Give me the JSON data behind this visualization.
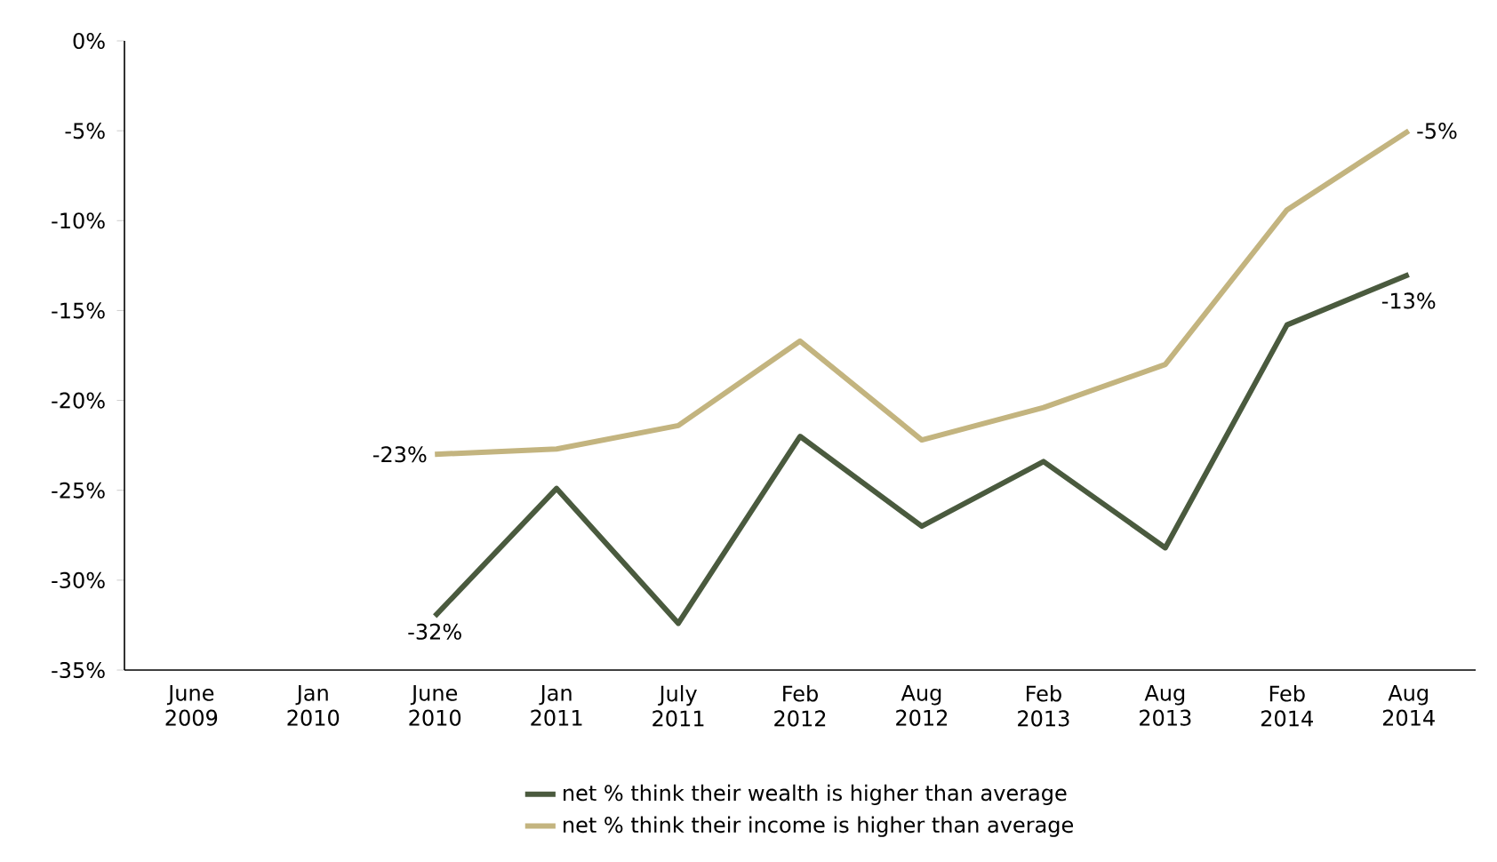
{
  "chart_data": {
    "type": "line",
    "categories": [
      "June 2009",
      "Jan 2010",
      "June 2010",
      "Jan 2011",
      "July 2011",
      "Feb 2012",
      "Aug 2012",
      "Feb 2013",
      "Aug 2013",
      "Feb 2014",
      "Aug 2014"
    ],
    "series": [
      {
        "name": "net % think their wealth is higher than average",
        "color": "#4a5a3e",
        "values": [
          null,
          null,
          -32,
          -24.9,
          -32.4,
          -22.0,
          -27.0,
          -23.4,
          -28.2,
          -15.8,
          -13
        ],
        "value_labels": [
          null,
          null,
          "-32%",
          null,
          null,
          null,
          null,
          null,
          null,
          null,
          "-13%"
        ]
      },
      {
        "name": "net % think their income is higher than average",
        "color": "#c3b47f",
        "values": [
          null,
          null,
          -23,
          -22.7,
          -21.4,
          -16.7,
          -22.2,
          -20.4,
          -18.0,
          -9.4,
          -5
        ],
        "value_labels": [
          null,
          null,
          "-23%",
          null,
          null,
          null,
          null,
          null,
          null,
          null,
          "-5%"
        ]
      }
    ],
    "ylim": [
      -35,
      0
    ],
    "yticks": [
      {
        "value": -35,
        "label": "-35%"
      },
      {
        "value": -30,
        "label": "-30%"
      },
      {
        "value": -25,
        "label": "-25%"
      },
      {
        "value": -20,
        "label": "-20%"
      },
      {
        "value": -15,
        "label": "-15%"
      },
      {
        "value": -10,
        "label": "-10%"
      },
      {
        "value": -5,
        "label": "-5%"
      },
      {
        "value": 0,
        "label": "0%"
      }
    ],
    "legend": "bottom",
    "line_style": "solid"
  }
}
